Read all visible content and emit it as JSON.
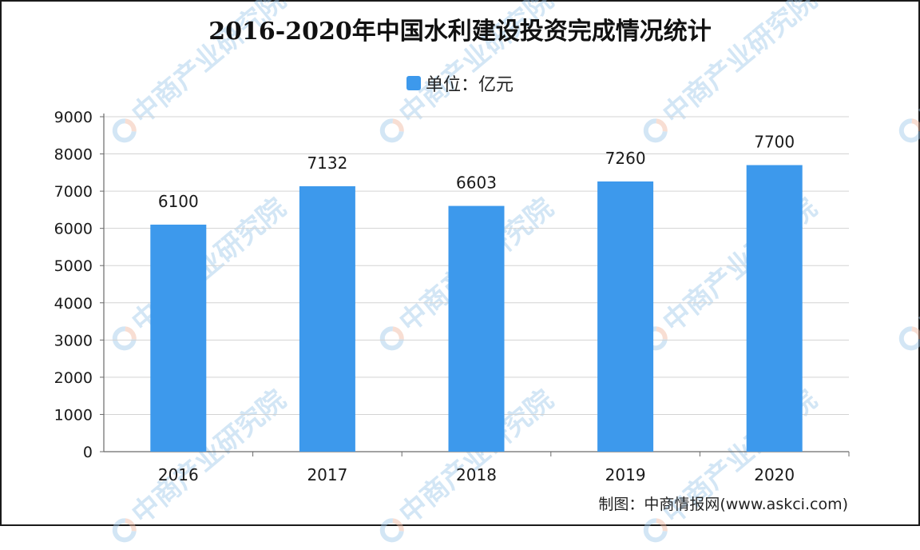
{
  "header": {
    "title": "2016-2020年中国水利建设投资完成情况统计"
  },
  "legend": {
    "label": "单位：亿元"
  },
  "footer": {
    "source": "制图：中商情报网(www.askci.com)"
  },
  "watermark": {
    "text": "中商产业研究院"
  },
  "colors": {
    "bar": "#3d99ec",
    "axis": "#6b6b6b",
    "grid": "#d3d3d3",
    "text": "#1a1a1a"
  },
  "chart_data": {
    "type": "bar",
    "title": "2016-2020年中国水利建设投资完成情况统计",
    "categories": [
      "2016",
      "2017",
      "2018",
      "2019",
      "2020"
    ],
    "series": [
      {
        "name": "单位：亿元",
        "values": [
          6100,
          7132,
          6603,
          7260,
          7700
        ]
      }
    ],
    "data_labels": [
      "6100",
      "7132",
      "6603",
      "7260",
      "7700"
    ],
    "ylim": [
      0,
      9000
    ],
    "yticks": [
      0,
      1000,
      2000,
      3000,
      4000,
      5000,
      6000,
      7000,
      8000,
      9000
    ],
    "grid": true,
    "legend_position": "top-center"
  }
}
